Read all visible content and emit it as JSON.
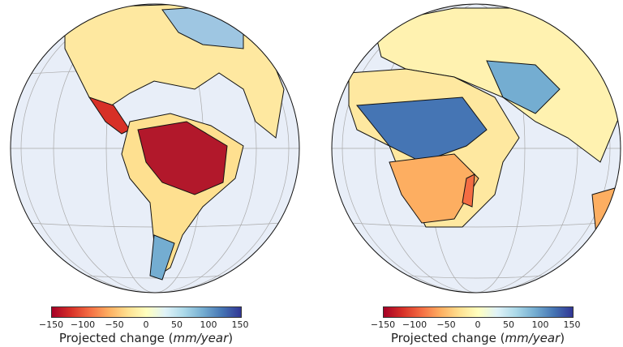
{
  "maps": [
    {
      "region": "Americas",
      "colorbar": {
        "ticks": [
          "−150",
          "−100",
          "−50",
          "0",
          "50",
          "100",
          "150"
        ],
        "label_prefix": "Projected change (",
        "label_unit": "mm/year",
        "label_suffix": ")"
      }
    },
    {
      "region": "Africa-Europe-Asia",
      "colorbar": {
        "ticks": [
          "−150",
          "−100",
          "−50",
          "0",
          "50",
          "100",
          "150"
        ],
        "label_prefix": "Projected change (",
        "label_unit": "mm/year",
        "label_suffix": ")"
      }
    }
  ],
  "colorscale": {
    "min": -150,
    "max": 150,
    "colors": [
      "#a50026",
      "#d73027",
      "#f46d43",
      "#fdae61",
      "#fee090",
      "#ffffbf",
      "#e0f3f8",
      "#abd9e9",
      "#74add1",
      "#4575b4",
      "#313695"
    ]
  },
  "ocean_color": "#e8eef8"
}
